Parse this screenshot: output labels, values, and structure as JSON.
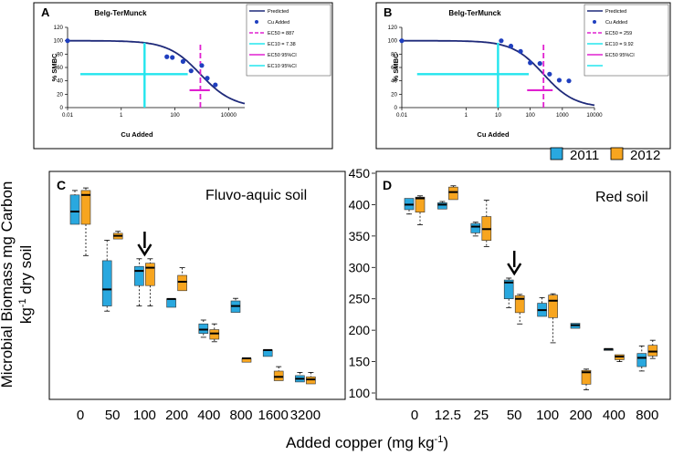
{
  "colors": {
    "y2011": "#29a8df",
    "y2012": "#f7a51f",
    "predicted": "#1f2a7a",
    "cu_points": "#1f3fbf",
    "ec50": "#e020d0",
    "ec10": "#23e5ee"
  },
  "chart_data": [
    {
      "id": "A",
      "panel_label": "A",
      "type": "scatter",
      "title": "Belg-TerMunck",
      "xlabel": "Cu Added",
      "ylabel": "% SMBC",
      "xscale": "log",
      "x_ticks": [
        "0.01",
        "1",
        "100",
        "10000"
      ],
      "y_ticks": [
        "0",
        "20",
        "40",
        "60",
        "80",
        "100",
        "120"
      ],
      "ylim": [
        0,
        120
      ],
      "xlim_log10": [
        -2,
        4.6
      ],
      "predicted_curve": {
        "top": 100,
        "ec50": 887,
        "slope": 0.72
      },
      "cu_added_points": [
        {
          "x": 0.01,
          "y": 100
        },
        {
          "x": 50,
          "y": 76
        },
        {
          "x": 80,
          "y": 75
        },
        {
          "x": 200,
          "y": 69
        },
        {
          "x": 400,
          "y": 55
        },
        {
          "x": 1000,
          "y": 63
        },
        {
          "x": 1600,
          "y": 44
        },
        {
          "x": 3200,
          "y": 34
        }
      ],
      "ec50": {
        "value": 887,
        "ci_low": 350,
        "ci_high": 2000,
        "ci_y": 26
      },
      "ec10": {
        "value": 7.38,
        "ci_low": 0.03,
        "ci_high": 300,
        "ci_y": 50,
        "y_top": 97
      },
      "legend": {
        "predicted": "Predicted",
        "cu_added": "Cu Added",
        "ec50": "EC50 = 887",
        "ec10": "EC10 = 7.38",
        "ec50_ci": "EC50 95%CI",
        "ec10_ci": "EC10 95%CI"
      }
    },
    {
      "id": "B",
      "panel_label": "B",
      "type": "scatter",
      "title": "Belg-TerMunck",
      "xlabel": "Cu Added",
      "ylabel": "% SMBC",
      "xscale": "log",
      "x_ticks": [
        "0.01",
        "1",
        "10",
        "100",
        "1000",
        "10000"
      ],
      "y_ticks": [
        "0",
        "20",
        "40",
        "60",
        "80",
        "100",
        "120"
      ],
      "ylim": [
        0,
        120
      ],
      "xlim_log10": [
        -2,
        4
      ],
      "predicted_curve": {
        "top": 100,
        "ec50": 259,
        "slope": 0.9
      },
      "cu_added_points": [
        {
          "x": 0.01,
          "y": 100
        },
        {
          "x": 12.5,
          "y": 100
        },
        {
          "x": 25,
          "y": 92
        },
        {
          "x": 50,
          "y": 84
        },
        {
          "x": 100,
          "y": 67
        },
        {
          "x": 200,
          "y": 66
        },
        {
          "x": 400,
          "y": 50
        },
        {
          "x": 800,
          "y": 41
        },
        {
          "x": 1600,
          "y": 40
        }
      ],
      "ec50": {
        "value": 259,
        "ci_low": 80,
        "ci_high": 500,
        "ci_y": 26
      },
      "ec10": {
        "value": 9.92,
        "ci_low": 0.03,
        "ci_high": 90,
        "ci_y": 50,
        "y_top": 97
      },
      "legend": {
        "predicted": "Predicted",
        "cu_added": "Cu Added",
        "ec50": "EC50 = 259",
        "ec10": "EC10 = 9.92",
        "ec50_ci": "EC50 95%CI",
        "ec10_ci": "EC10 95%CI"
      }
    },
    {
      "id": "C",
      "panel_label": "C",
      "type": "boxplot",
      "title": "Fluvo-aquic soil",
      "categories": [
        "0",
        "50",
        "100",
        "200",
        "400",
        "800",
        "1600",
        "3200"
      ],
      "ylim": [
        100,
        450
      ],
      "arrow_category": "100",
      "series": [
        {
          "name": "2011",
          "boxes": [
            {
              "cat": "0",
              "min": 370,
              "q1": 370,
              "median": 390,
              "q3": 416,
              "max": 423
            },
            {
              "cat": "50",
              "min": 234,
              "q1": 242,
              "median": 268,
              "q3": 313,
              "max": 345
            },
            {
              "cat": "100",
              "min": 242,
              "q1": 274,
              "median": 297,
              "q3": 304,
              "max": 316
            },
            {
              "cat": "200",
              "min": 240,
              "q1": 240,
              "median": 253,
              "q3": 253,
              "max": 253
            },
            {
              "cat": "400",
              "min": 193,
              "q1": 199,
              "median": 205,
              "q3": 214,
              "max": 220
            },
            {
              "cat": "800",
              "min": 232,
              "q1": 232,
              "median": 242,
              "q3": 250,
              "max": 254
            },
            {
              "cat": "1600",
              "min": 163,
              "q1": 163,
              "median": 173,
              "q3": 173,
              "max": 173
            },
            {
              "cat": "3200",
              "min": 123,
              "q1": 123,
              "median": 128,
              "q3": 133,
              "max": 138
            }
          ]
        },
        {
          "name": "2012",
          "boxes": [
            {
              "cat": "0",
              "min": 321,
              "q1": 370,
              "median": 416,
              "q3": 423,
              "max": 427
            },
            {
              "cat": "50",
              "min": 347,
              "q1": 347,
              "median": 352,
              "q3": 356,
              "max": 359
            },
            {
              "cat": "100",
              "min": 242,
              "q1": 274,
              "median": 302,
              "q3": 309,
              "max": 316
            },
            {
              "cat": "200",
              "min": 266,
              "q1": 266,
              "median": 280,
              "q3": 290,
              "max": 302
            },
            {
              "cat": "400",
              "min": 186,
              "q1": 190,
              "median": 199,
              "q3": 205,
              "max": 214
            },
            {
              "cat": "800",
              "min": 154,
              "q1": 154,
              "median": 160,
              "q3": 160,
              "max": 160
            },
            {
              "cat": "1600",
              "min": 125,
              "q1": 125,
              "median": 131,
              "q3": 140,
              "max": 147
            },
            {
              "cat": "3200",
              "min": 120,
              "q1": 120,
              "median": 127,
              "q3": 131,
              "max": 138
            }
          ]
        }
      ]
    },
    {
      "id": "D",
      "panel_label": "D",
      "type": "boxplot",
      "title": "Red soil",
      "categories": [
        "0",
        "12.5",
        "25",
        "50",
        "100",
        "200",
        "400",
        "800"
      ],
      "ylim": [
        100,
        450
      ],
      "arrow_category": "50",
      "y_ticks": [
        "100",
        "150",
        "200",
        "250",
        "300",
        "350",
        "400",
        "450"
      ],
      "series": [
        {
          "name": "2011",
          "boxes": [
            {
              "cat": "0",
              "min": 385,
              "q1": 392,
              "median": 400,
              "q3": 410,
              "max": 410
            },
            {
              "cat": "12.5",
              "min": 393,
              "q1": 393,
              "median": 400,
              "q3": 403,
              "max": 405
            },
            {
              "cat": "25",
              "min": 350,
              "q1": 355,
              "median": 365,
              "q3": 370,
              "max": 372
            },
            {
              "cat": "50",
              "min": 236,
              "q1": 250,
              "median": 276,
              "q3": 280,
              "max": 283
            },
            {
              "cat": "100",
              "min": 222,
              "q1": 222,
              "median": 232,
              "q3": 243,
              "max": 252
            },
            {
              "cat": "200",
              "min": 203,
              "q1": 203,
              "median": 208,
              "q3": 211,
              "max": 211
            },
            {
              "cat": "400",
              "min": 170,
              "q1": 170,
              "median": 170,
              "q3": 170,
              "max": 170
            },
            {
              "cat": "800",
              "min": 135,
              "q1": 142,
              "median": 156,
              "q3": 163,
              "max": 175
            }
          ]
        },
        {
          "name": "2012",
          "boxes": [
            {
              "cat": "0",
              "min": 368,
              "q1": 388,
              "median": 410,
              "q3": 412,
              "max": 414
            },
            {
              "cat": "12.5",
              "min": 408,
              "q1": 408,
              "median": 420,
              "q3": 428,
              "max": 430
            },
            {
              "cat": "25",
              "min": 333,
              "q1": 343,
              "median": 361,
              "q3": 381,
              "max": 407
            },
            {
              "cat": "50",
              "min": 210,
              "q1": 228,
              "median": 250,
              "q3": 255,
              "max": 257
            },
            {
              "cat": "100",
              "min": 180,
              "q1": 220,
              "median": 247,
              "q3": 256,
              "max": 258
            },
            {
              "cat": "200",
              "min": 105,
              "q1": 114,
              "median": 133,
              "q3": 136,
              "max": 138
            },
            {
              "cat": "400",
              "min": 150,
              "q1": 153,
              "median": 158,
              "q3": 161,
              "max": 161
            },
            {
              "cat": "800",
              "min": 155,
              "q1": 159,
              "median": 166,
              "q3": 176,
              "max": 184
            }
          ]
        }
      ]
    }
  ],
  "shared": {
    "legend_2011": "2011",
    "legend_2012": "2012",
    "ylabel_line1": "Microbial Biomass mg Carbon",
    "ylabel_line2_pre": "kg",
    "ylabel_line2_sup": "-1",
    "ylabel_line2_post": " dry soil",
    "xlabel_pre": "Added copper (mg kg",
    "xlabel_sup": "-1",
    "xlabel_post": ")"
  }
}
